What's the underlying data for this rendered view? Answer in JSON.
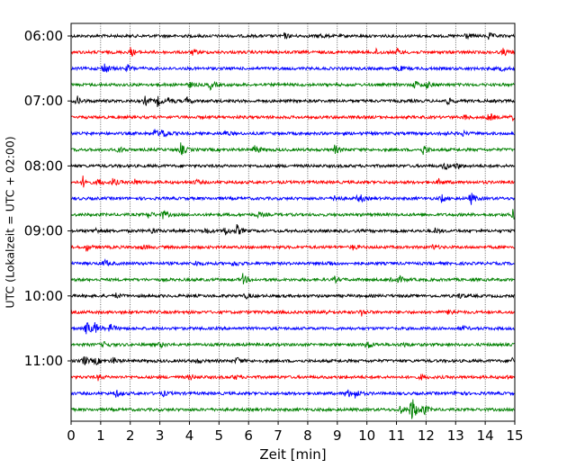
{
  "chart_data": {
    "type": "line",
    "title": "",
    "xlabel": "Zeit  [min]",
    "ylabel": "UTC (Lokalzeit = UTC + 02:00)",
    "xlim": [
      0,
      15
    ],
    "x_ticks": [
      "0",
      "1",
      "2",
      "3",
      "4",
      "5",
      "6",
      "7",
      "8",
      "9",
      "10",
      "11",
      "12",
      "13",
      "14",
      "15"
    ],
    "y_ticks": [
      {
        "label": "06:00",
        "row": 0
      },
      {
        "label": "07:00",
        "row": 4
      },
      {
        "label": "08:00",
        "row": 8
      },
      {
        "label": "09:00",
        "row": 12
      },
      {
        "label": "10:00",
        "row": 16
      },
      {
        "label": "11:00",
        "row": 20
      }
    ],
    "grid": {
      "vertical": "dotted"
    },
    "colors": [
      "#000000",
      "#ff0000",
      "#0000ff",
      "#008000"
    ],
    "series": [
      {
        "start": "06:00",
        "color": "#000000",
        "events": [
          {
            "t": 7.2,
            "a": 3
          },
          {
            "t": 8.4,
            "a": 3
          },
          {
            "t": 13.3,
            "a": 4
          },
          {
            "t": 14.1,
            "a": 4
          }
        ]
      },
      {
        "start": "06:15",
        "color": "#ff0000",
        "events": [
          {
            "t": 2.0,
            "a": 5
          },
          {
            "t": 4.1,
            "a": 3
          },
          {
            "t": 10.3,
            "a": 3
          },
          {
            "t": 11.0,
            "a": 4
          },
          {
            "t": 14.6,
            "a": 4
          }
        ]
      },
      {
        "start": "06:30",
        "color": "#0000ff",
        "events": [
          {
            "t": 1.1,
            "a": 8
          },
          {
            "t": 1.9,
            "a": 4
          },
          {
            "t": 11.0,
            "a": 5
          },
          {
            "t": 14.5,
            "a": 3
          }
        ]
      },
      {
        "start": "06:45",
        "color": "#008000",
        "events": [
          {
            "t": 4.0,
            "a": 3
          },
          {
            "t": 4.7,
            "a": 5
          },
          {
            "t": 11.6,
            "a": 5
          },
          {
            "t": 12.0,
            "a": 4
          }
        ]
      },
      {
        "start": "07:00",
        "color": "#000000",
        "events": [
          {
            "t": 0.2,
            "a": 5
          },
          {
            "t": 2.5,
            "a": 5
          },
          {
            "t": 2.9,
            "a": 6
          },
          {
            "t": 3.3,
            "a": 4
          },
          {
            "t": 3.9,
            "a": 4
          },
          {
            "t": 12.7,
            "a": 4
          }
        ]
      },
      {
        "start": "07:15",
        "color": "#ff0000",
        "events": [
          {
            "t": 13.3,
            "a": 3
          },
          {
            "t": 14.1,
            "a": 6
          },
          {
            "t": 14.9,
            "a": 4
          }
        ]
      },
      {
        "start": "07:30",
        "color": "#0000ff",
        "events": [
          {
            "t": 2.8,
            "a": 5
          },
          {
            "t": 3.1,
            "a": 7
          },
          {
            "t": 5.2,
            "a": 3
          },
          {
            "t": 12.5,
            "a": 3
          },
          {
            "t": 13.2,
            "a": 3
          }
        ]
      },
      {
        "start": "07:45",
        "color": "#008000",
        "events": [
          {
            "t": 1.6,
            "a": 4
          },
          {
            "t": 3.7,
            "a": 7
          },
          {
            "t": 6.2,
            "a": 6
          },
          {
            "t": 8.9,
            "a": 5
          },
          {
            "t": 11.9,
            "a": 6
          }
        ]
      },
      {
        "start": "08:00",
        "color": "#000000",
        "events": [
          {
            "t": 12.6,
            "a": 5
          },
          {
            "t": 13.0,
            "a": 4
          }
        ]
      },
      {
        "start": "08:15",
        "color": "#ff0000",
        "events": [
          {
            "t": 0.4,
            "a": 6
          },
          {
            "t": 0.9,
            "a": 5
          },
          {
            "t": 1.4,
            "a": 5
          },
          {
            "t": 2.1,
            "a": 4
          },
          {
            "t": 4.2,
            "a": 3
          },
          {
            "t": 12.4,
            "a": 4
          }
        ]
      },
      {
        "start": "08:30",
        "color": "#0000ff",
        "events": [
          {
            "t": 8.9,
            "a": 4
          },
          {
            "t": 9.7,
            "a": 7
          },
          {
            "t": 12.5,
            "a": 5
          },
          {
            "t": 13.5,
            "a": 8
          }
        ]
      },
      {
        "start": "08:45",
        "color": "#008000",
        "events": [
          {
            "t": 2.6,
            "a": 4
          },
          {
            "t": 3.1,
            "a": 5
          },
          {
            "t": 6.3,
            "a": 3
          },
          {
            "t": 14.9,
            "a": 7
          }
        ]
      },
      {
        "start": "09:00",
        "color": "#000000",
        "events": [
          {
            "t": 0.8,
            "a": 3
          },
          {
            "t": 2.7,
            "a": 4
          },
          {
            "t": 4.5,
            "a": 4
          },
          {
            "t": 5.2,
            "a": 5
          },
          {
            "t": 5.6,
            "a": 6
          },
          {
            "t": 12.3,
            "a": 3
          }
        ]
      },
      {
        "start": "09:15",
        "color": "#ff0000",
        "events": [
          {
            "t": 0.5,
            "a": 4
          },
          {
            "t": 2.4,
            "a": 3
          },
          {
            "t": 9.5,
            "a": 3
          },
          {
            "t": 12.2,
            "a": 3
          }
        ]
      },
      {
        "start": "09:30",
        "color": "#0000ff",
        "events": [
          {
            "t": 1.1,
            "a": 5
          },
          {
            "t": 4.2,
            "a": 3
          },
          {
            "t": 5.5,
            "a": 4
          },
          {
            "t": 8.7,
            "a": 3
          }
        ]
      },
      {
        "start": "09:45",
        "color": "#008000",
        "events": [
          {
            "t": 5.8,
            "a": 6
          },
          {
            "t": 8.9,
            "a": 3
          },
          {
            "t": 10.8,
            "a": 4
          },
          {
            "t": 11.1,
            "a": 3
          }
        ]
      },
      {
        "start": "10:00",
        "color": "#000000",
        "events": [
          {
            "t": 1.5,
            "a": 3
          },
          {
            "t": 5.9,
            "a": 3
          },
          {
            "t": 13.1,
            "a": 3
          }
        ]
      },
      {
        "start": "10:15",
        "color": "#ff0000",
        "events": [
          {
            "t": 8.5,
            "a": 3
          },
          {
            "t": 9.8,
            "a": 4
          },
          {
            "t": 12.8,
            "a": 5
          }
        ]
      },
      {
        "start": "10:30",
        "color": "#0000ff",
        "events": [
          {
            "t": 0.5,
            "a": 10
          },
          {
            "t": 0.8,
            "a": 6
          },
          {
            "t": 1.3,
            "a": 6
          },
          {
            "t": 13.2,
            "a": 3
          }
        ]
      },
      {
        "start": "10:45",
        "color": "#008000",
        "events": [
          {
            "t": 1.1,
            "a": 3
          },
          {
            "t": 3.0,
            "a": 3
          },
          {
            "t": 10.0,
            "a": 6
          },
          {
            "t": 11.2,
            "a": 3
          }
        ]
      },
      {
        "start": "11:00",
        "color": "#000000",
        "events": [
          {
            "t": 0.4,
            "a": 7
          },
          {
            "t": 0.8,
            "a": 5
          },
          {
            "t": 1.4,
            "a": 4
          },
          {
            "t": 4.2,
            "a": 3
          },
          {
            "t": 5.6,
            "a": 4
          },
          {
            "t": 14.9,
            "a": 4
          }
        ]
      },
      {
        "start": "11:15",
        "color": "#ff0000",
        "events": [
          {
            "t": 0.9,
            "a": 3
          },
          {
            "t": 4.0,
            "a": 4
          },
          {
            "t": 5.5,
            "a": 3
          },
          {
            "t": 11.8,
            "a": 3
          },
          {
            "t": 14.7,
            "a": 3
          }
        ]
      },
      {
        "start": "11:30",
        "color": "#0000ff",
        "events": [
          {
            "t": 1.5,
            "a": 4
          },
          {
            "t": 3.1,
            "a": 3
          },
          {
            "t": 9.3,
            "a": 6
          },
          {
            "t": 9.6,
            "a": 5
          },
          {
            "t": 13.0,
            "a": 4
          }
        ]
      },
      {
        "start": "11:45",
        "color": "#008000",
        "events": [
          {
            "t": 11.1,
            "a": 5
          },
          {
            "t": 11.5,
            "a": 18
          },
          {
            "t": 11.9,
            "a": 6
          }
        ]
      }
    ]
  }
}
